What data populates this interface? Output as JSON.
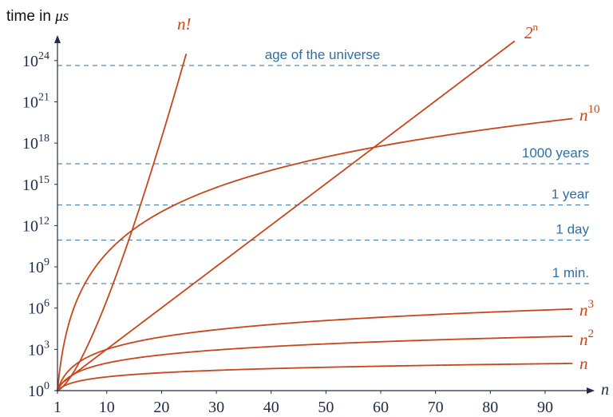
{
  "chart_data": {
    "type": "line",
    "title": "",
    "ylabel_prefix": "time in ",
    "ylabel_unit": "μs",
    "xlabel": "n",
    "y_scale": "log10",
    "ylim_exponent": [
      0,
      25.5
    ],
    "xlim": [
      1,
      97
    ],
    "x_ticks": [
      {
        "value": 1,
        "label": "1"
      },
      {
        "value": 10,
        "label": "10"
      },
      {
        "value": 20,
        "label": "20"
      },
      {
        "value": 30,
        "label": "30"
      },
      {
        "value": 40,
        "label": "40"
      },
      {
        "value": 50,
        "label": "50"
      },
      {
        "value": 60,
        "label": "60"
      },
      {
        "value": 70,
        "label": "70"
      },
      {
        "value": 80,
        "label": "80"
      },
      {
        "value": 90,
        "label": "90"
      }
    ],
    "y_ticks": [
      {
        "exponent": 0,
        "base": "10",
        "power": "0"
      },
      {
        "exponent": 3,
        "base": "10",
        "power": "3"
      },
      {
        "exponent": 6,
        "base": "10",
        "power": "6"
      },
      {
        "exponent": 9,
        "base": "10",
        "power": "9"
      },
      {
        "exponent": 12,
        "base": "10",
        "power": "12"
      },
      {
        "exponent": 15,
        "base": "10",
        "power": "15"
      },
      {
        "exponent": 18,
        "base": "10",
        "power": "18"
      },
      {
        "exponent": 21,
        "base": "10",
        "power": "21"
      },
      {
        "exponent": 24,
        "base": "10",
        "power": "24"
      }
    ],
    "reference_lines": [
      {
        "label": "1 min.",
        "y_exponent": 7.78
      },
      {
        "label": "1 day",
        "y_exponent": 10.94
      },
      {
        "label": "1 year",
        "y_exponent": 13.5
      },
      {
        "label": "1000 years",
        "y_exponent": 16.5
      },
      {
        "label": "age of the universe",
        "y_exponent": 23.64
      }
    ],
    "series": [
      {
        "base": "n",
        "power": "",
        "formula": "n",
        "x_max": 95
      },
      {
        "base": "n",
        "power": "2",
        "formula": "n2",
        "x_max": 95
      },
      {
        "base": "n",
        "power": "3",
        "formula": "n3",
        "x_max": 95
      },
      {
        "base": "n",
        "power": "10",
        "formula": "n10",
        "x_max": 95
      },
      {
        "base": "2",
        "power": "n",
        "formula": "2n",
        "x_max": 85
      },
      {
        "base": "n!",
        "power": "",
        "formula": "fact",
        "x_max": 24.5
      }
    ],
    "grid": false,
    "colors": {
      "curves": "#c8461a",
      "reference_lines": "#2e6fa6",
      "axes": "#1f2d4a"
    }
  }
}
